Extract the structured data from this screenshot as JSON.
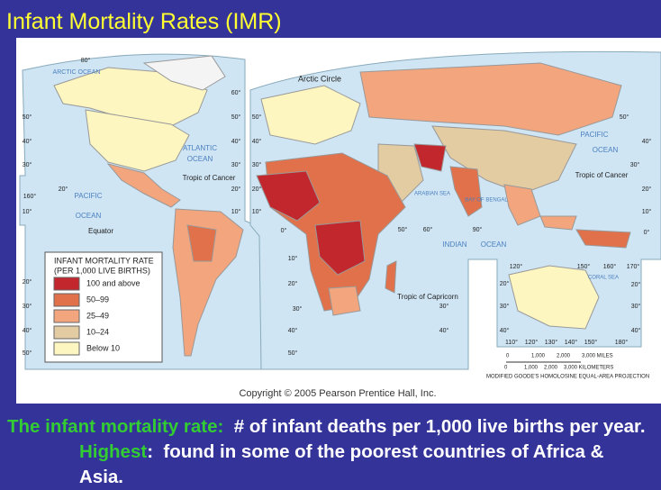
{
  "title": "Infant Mortality Rates (IMR)",
  "legend": {
    "title": [
      "INFANT MORTALITY RATE",
      "(PER 1,000 LIVE BIRTHS)"
    ],
    "items": [
      {
        "label": "100 and above",
        "color": "#c1272d"
      },
      {
        "label": "50–99",
        "color": "#e0714a"
      },
      {
        "label": "25–49",
        "color": "#f3a57d"
      },
      {
        "label": "10–24",
        "color": "#e3cba2"
      },
      {
        "label": "Below 10",
        "color": "#fdf6c0"
      }
    ]
  },
  "map_labels": [
    "ARCTIC OCEAN",
    "Arctic Circle",
    "ATLANTIC",
    "OCEAN",
    "Tropic of Cancer",
    "PACIFIC",
    "OCEAN",
    "Equator",
    "ARABIAN SEA",
    "BAY OF BENGAL",
    "INDIAN",
    "OCEAN",
    "Tropic of Capricorn",
    "PACIFIC",
    "OCEAN",
    "Tropic of Cancer",
    "CORAL SEA",
    "80°",
    "50°",
    "40°",
    "30°",
    "20°",
    "10°",
    "160°",
    "60°",
    "50°",
    "40°",
    "30°",
    "20°",
    "10°",
    "0°",
    "50°",
    "40°",
    "30°",
    "20°",
    "10°",
    "50°",
    "40°",
    "30°",
    "20°",
    "10°",
    "0°",
    "50°",
    "60°",
    "90°",
    "10°",
    "20°",
    "30°",
    "40°",
    "50°",
    "30°",
    "40°",
    "120°",
    "150°",
    "160°",
    "170°",
    "20°",
    "30°",
    "40°",
    "20°",
    "30°",
    "40°",
    "110°",
    "120°",
    "130°",
    "140°",
    "150°",
    "180°",
    "20°",
    "30°",
    "40°",
    "50°"
  ],
  "scale": {
    "miles": [
      "0",
      "1,000",
      "2,000",
      "3,000 MILES"
    ],
    "kilometers": [
      "0",
      "1,000",
      "2,000",
      "3,000 KILOMETERS"
    ],
    "projection": "MODIFIED GOODE'S HOMOLOSINE EQUAL-AREA PROJECTION"
  },
  "copyright": "Copyright © 2005 Pearson Prentice Hall, Inc.",
  "caption": [
    {
      "text": "The infant mortality rate:",
      "color": "#33cc33"
    },
    {
      "text": "  # of infant deaths per 1,000 live births per year. ",
      "color": "#ffffff"
    },
    {
      "text": "Highest",
      "color": "#33cc33"
    },
    {
      "text": ":  found in some of the poorest countries of Africa & Asia.",
      "color": "#ffffff"
    }
  ]
}
